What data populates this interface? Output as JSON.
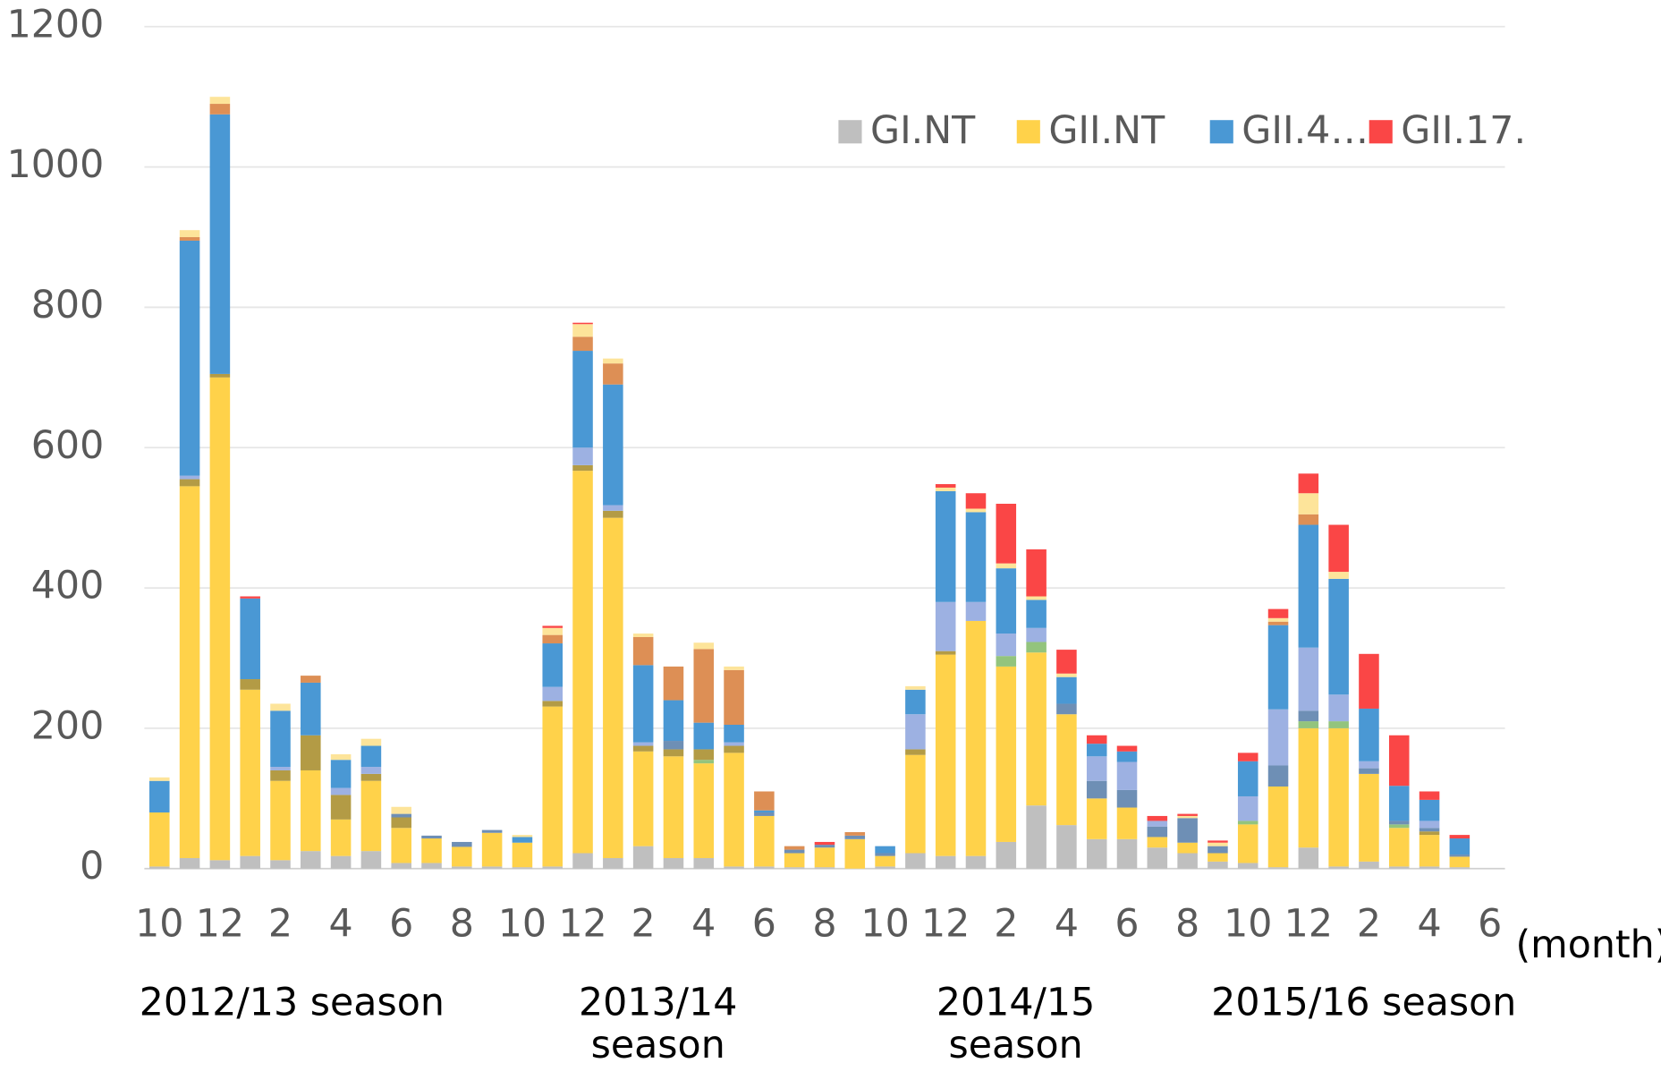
{
  "chart_data": {
    "type": "stacked_bar",
    "categories": [
      "10",
      null,
      "12",
      null,
      "2",
      null,
      "4",
      null,
      "6",
      null,
      "8",
      null,
      "10",
      null,
      "12",
      null,
      "2",
      null,
      "4",
      null,
      "6",
      null,
      "8",
      null,
      "10",
      null,
      "12",
      null,
      "2",
      null,
      "4",
      null,
      "6",
      null,
      "8",
      null,
      "10",
      null,
      "12",
      null,
      "2",
      null,
      "4",
      null,
      "6"
    ],
    "series": [
      {
        "name": "GI.NT",
        "color": "#bfbfbf",
        "values": [
          3,
          15,
          12,
          18,
          12,
          25,
          18,
          25,
          8,
          8,
          3,
          3,
          2,
          3,
          22,
          15,
          32,
          15,
          15,
          3,
          3,
          2,
          2,
          0,
          3,
          22,
          18,
          18,
          38,
          90,
          62,
          42,
          42,
          30,
          22,
          10,
          8,
          2,
          30,
          3,
          10,
          3,
          3,
          2,
          null
        ]
      },
      {
        "name": "GII.NT",
        "color": "#ffd24a",
        "values": [
          77,
          530,
          688,
          237,
          113,
          115,
          52,
          100,
          50,
          35,
          28,
          48,
          35,
          228,
          545,
          485,
          135,
          145,
          135,
          162,
          72,
          20,
          28,
          42,
          15,
          140,
          287,
          335,
          250,
          218,
          158,
          58,
          45,
          15,
          15,
          12,
          55,
          115,
          170,
          197,
          125,
          55,
          45,
          15,
          null
        ]
      },
      {
        "color": "#93c47d",
        "values": [
          0,
          0,
          0,
          0,
          0,
          0,
          0,
          0,
          0,
          0,
          0,
          0,
          0,
          0,
          0,
          0,
          0,
          0,
          5,
          0,
          0,
          0,
          0,
          0,
          0,
          0,
          0,
          0,
          15,
          15,
          0,
          0,
          0,
          0,
          0,
          0,
          5,
          0,
          10,
          10,
          0,
          5,
          0,
          0,
          null
        ]
      },
      {
        "color": "#b39b45",
        "values": [
          0,
          10,
          5,
          15,
          15,
          50,
          35,
          10,
          15,
          0,
          0,
          0,
          0,
          8,
          8,
          10,
          8,
          10,
          15,
          10,
          0,
          0,
          0,
          0,
          0,
          8,
          5,
          0,
          0,
          0,
          0,
          0,
          0,
          0,
          0,
          0,
          0,
          0,
          0,
          0,
          0,
          0,
          5,
          0,
          null
        ]
      },
      {
        "color": "#6e8fb5",
        "values": [
          0,
          0,
          0,
          0,
          0,
          0,
          0,
          0,
          5,
          4,
          7,
          4,
          0,
          0,
          0,
          0,
          0,
          12,
          0,
          0,
          5,
          5,
          4,
          5,
          4,
          0,
          0,
          0,
          0,
          0,
          15,
          25,
          25,
          15,
          35,
          10,
          0,
          30,
          15,
          0,
          8,
          5,
          5,
          3,
          null
        ]
      },
      {
        "color": "#9db1e2",
        "values": [
          0,
          5,
          0,
          0,
          5,
          0,
          10,
          10,
          0,
          0,
          0,
          0,
          0,
          20,
          25,
          8,
          5,
          0,
          0,
          5,
          0,
          0,
          0,
          0,
          0,
          50,
          70,
          27,
          32,
          20,
          0,
          35,
          40,
          8,
          0,
          0,
          35,
          80,
          90,
          38,
          10,
          0,
          10,
          0,
          null
        ]
      },
      {
        "name": "GII.4…",
        "color": "#4a98d4",
        "values": [
          45,
          335,
          370,
          115,
          80,
          75,
          40,
          30,
          0,
          0,
          0,
          0,
          8,
          62,
          138,
          172,
          110,
          58,
          38,
          25,
          3,
          0,
          0,
          0,
          10,
          35,
          158,
          128,
          93,
          40,
          38,
          18,
          15,
          0,
          0,
          0,
          50,
          120,
          175,
          165,
          75,
          50,
          30,
          23,
          null
        ]
      },
      {
        "color": "#dd8f55",
        "values": [
          0,
          5,
          15,
          0,
          0,
          10,
          0,
          0,
          0,
          0,
          0,
          0,
          0,
          12,
          20,
          30,
          40,
          48,
          105,
          78,
          27,
          5,
          0,
          5,
          0,
          0,
          0,
          0,
          0,
          0,
          0,
          0,
          0,
          0,
          0,
          0,
          0,
          5,
          15,
          0,
          0,
          0,
          0,
          0,
          null
        ]
      },
      {
        "color": "#fde49a",
        "values": [
          5,
          10,
          10,
          0,
          10,
          0,
          8,
          10,
          10,
          0,
          0,
          0,
          3,
          10,
          18,
          7,
          5,
          0,
          9,
          5,
          0,
          0,
          0,
          0,
          0,
          5,
          5,
          5,
          7,
          5,
          5,
          0,
          0,
          0,
          3,
          5,
          0,
          5,
          30,
          10,
          0,
          0,
          0,
          0,
          null
        ]
      },
      {
        "name": "GII.17.",
        "color": "#fa4646",
        "values": [
          0,
          0,
          0,
          3,
          0,
          0,
          0,
          0,
          0,
          0,
          0,
          0,
          0,
          3,
          2,
          0,
          0,
          0,
          0,
          0,
          0,
          0,
          4,
          0,
          0,
          0,
          5,
          22,
          85,
          67,
          34,
          12,
          8,
          7,
          3,
          3,
          12,
          13,
          28,
          67,
          78,
          72,
          12,
          5,
          null
        ]
      }
    ],
    "ylim": [
      0,
      1200
    ],
    "yticks": [
      0,
      200,
      400,
      600,
      800,
      1000,
      1200
    ],
    "grid": true,
    "legend": "top-right",
    "x_unit": "(month)",
    "annotations": [
      "2012/13 season",
      "2013/14 season",
      "2014/15 season",
      "2015/16 season"
    ]
  }
}
